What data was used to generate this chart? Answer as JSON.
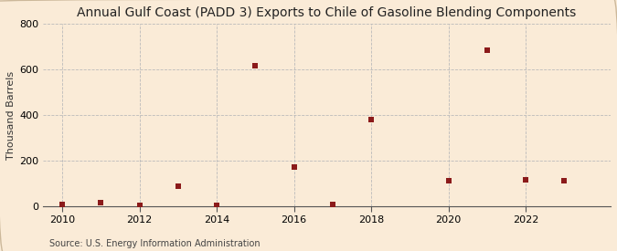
{
  "title": "Annual Gulf Coast (PADD 3) Exports to Chile of Gasoline Blending Components",
  "ylabel": "Thousand Barrels",
  "source": "Source: U.S. Energy Information Administration",
  "background_color": "#faebd7",
  "plot_bg_color": "#faebd7",
  "marker_color": "#8b1a1a",
  "years": [
    2010,
    2011,
    2012,
    2013,
    2014,
    2015,
    2016,
    2017,
    2018,
    2020,
    2021,
    2022,
    2023
  ],
  "values": [
    5,
    15,
    3,
    85,
    3,
    615,
    170,
    5,
    380,
    110,
    685,
    115,
    110
  ],
  "xlim": [
    2009.5,
    2024.2
  ],
  "ylim": [
    0,
    800
  ],
  "yticks": [
    0,
    200,
    400,
    600,
    800
  ],
  "xticks": [
    2010,
    2012,
    2014,
    2016,
    2018,
    2020,
    2022
  ],
  "grid_color": "#bbbbbb",
  "title_fontsize": 10,
  "axis_fontsize": 8,
  "tick_fontsize": 8,
  "source_fontsize": 7
}
